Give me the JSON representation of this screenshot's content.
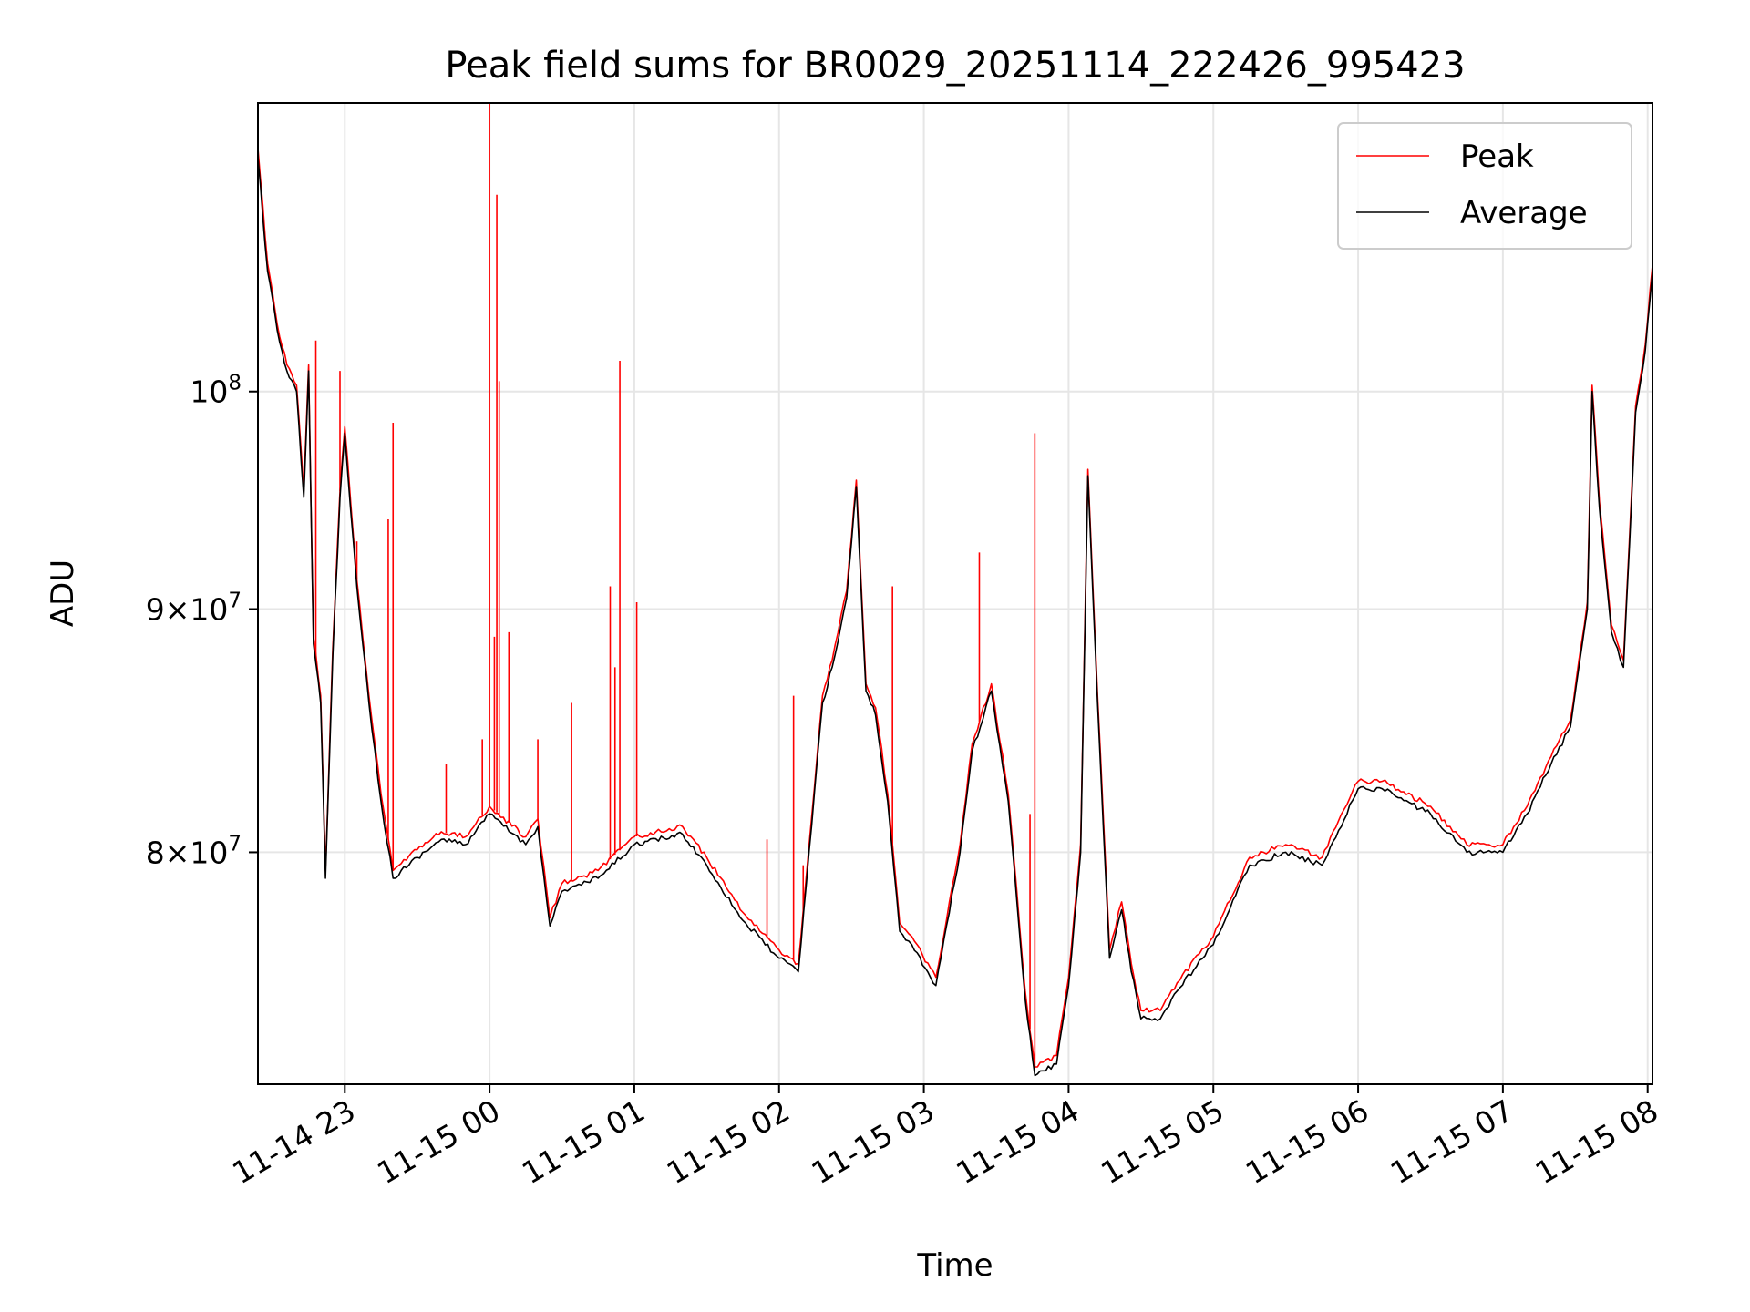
{
  "chart_data": {
    "type": "line",
    "title": "Peak field sums for BR0029_20251114_222426_995423",
    "xlabel": "Time",
    "ylabel": "ADU",
    "yscale": "log",
    "ylim": [
      71500000,
      115000000
    ],
    "xlim": [
      "2025-11-14 22:24",
      "2025-11-15 08:02"
    ],
    "grid": true,
    "legend": "top-right",
    "x_ticks": [
      {
        "value": "2025-11-14 23:00",
        "label": "11-14 23"
      },
      {
        "value": "2025-11-15 00:00",
        "label": "11-15 00"
      },
      {
        "value": "2025-11-15 01:00",
        "label": "11-15 01"
      },
      {
        "value": "2025-11-15 02:00",
        "label": "11-15 02"
      },
      {
        "value": "2025-11-15 03:00",
        "label": "11-15 03"
      },
      {
        "value": "2025-11-15 04:00",
        "label": "11-15 04"
      },
      {
        "value": "2025-11-15 05:00",
        "label": "11-15 05"
      },
      {
        "value": "2025-11-15 06:00",
        "label": "11-15 06"
      },
      {
        "value": "2025-11-15 07:00",
        "label": "11-15 07"
      },
      {
        "value": "2025-11-15 08:00",
        "label": "11-15 08"
      }
    ],
    "y_ticks": [
      {
        "value": 80000000,
        "mantissa": "8",
        "times": "×",
        "base": "10",
        "exp": "7"
      },
      {
        "value": 90000000,
        "mantissa": "9",
        "times": "×",
        "base": "10",
        "exp": "7"
      },
      {
        "value": 100000000,
        "mantissa": "",
        "times": "",
        "base": "10",
        "exp": "8"
      }
    ],
    "series": [
      {
        "name": "Average",
        "color": "#000000",
        "x": [
          "2025-11-14 22:24",
          "2025-11-14 22:28",
          "2025-11-14 22:32",
          "2025-11-14 22:36",
          "2025-11-14 22:40",
          "2025-11-14 22:43",
          "2025-11-14 22:45",
          "2025-11-14 22:47",
          "2025-11-14 22:50",
          "2025-11-14 22:52",
          "2025-11-14 22:55",
          "2025-11-14 22:58",
          "2025-11-14 23:00",
          "2025-11-14 23:05",
          "2025-11-14 23:10",
          "2025-11-14 23:15",
          "2025-11-14 23:20",
          "2025-11-14 23:30",
          "2025-11-14 23:40",
          "2025-11-14 23:50",
          "2025-11-15 00:00",
          "2025-11-15 00:15",
          "2025-11-15 00:20",
          "2025-11-15 00:25",
          "2025-11-15 00:30",
          "2025-11-15 00:45",
          "2025-11-15 01:00",
          "2025-11-15 01:20",
          "2025-11-15 01:30",
          "2025-11-15 01:45",
          "2025-11-15 02:00",
          "2025-11-15 02:08",
          "2025-11-15 02:18",
          "2025-11-15 02:22",
          "2025-11-15 02:28",
          "2025-11-15 02:32",
          "2025-11-15 02:36",
          "2025-11-15 02:40",
          "2025-11-15 02:45",
          "2025-11-15 02:50",
          "2025-11-15 02:55",
          "2025-11-15 03:05",
          "2025-11-15 03:15",
          "2025-11-15 03:20",
          "2025-11-15 03:28",
          "2025-11-15 03:35",
          "2025-11-15 03:42",
          "2025-11-15 03:46",
          "2025-11-15 03:55",
          "2025-11-15 04:00",
          "2025-11-15 04:05",
          "2025-11-15 04:08",
          "2025-11-15 04:12",
          "2025-11-15 04:17",
          "2025-11-15 04:22",
          "2025-11-15 04:26",
          "2025-11-15 04:30",
          "2025-11-15 04:38",
          "2025-11-15 04:45",
          "2025-11-15 05:00",
          "2025-11-15 05:15",
          "2025-11-15 05:30",
          "2025-11-15 05:45",
          "2025-11-15 06:00",
          "2025-11-15 06:10",
          "2025-11-15 06:30",
          "2025-11-15 06:45",
          "2025-11-15 07:00",
          "2025-11-15 07:10",
          "2025-11-15 07:20",
          "2025-11-15 07:28",
          "2025-11-15 07:35",
          "2025-11-15 07:37",
          "2025-11-15 07:40",
          "2025-11-15 07:45",
          "2025-11-15 07:50",
          "2025-11-15 07:55",
          "2025-11-15 07:59",
          "2025-11-15 08:02"
        ],
        "y": [
          112000000,
          106000000,
          103000000,
          101000000,
          100000000,
          95000000,
          101000000,
          88500000,
          86000000,
          79000000,
          88000000,
          95000000,
          98000000,
          91000000,
          86000000,
          82000000,
          79000000,
          79800000,
          80500000,
          80300000,
          81500000,
          80300000,
          81000000,
          77200000,
          78500000,
          79000000,
          80300000,
          80700000,
          79500000,
          77400000,
          76000000,
          75500000,
          86000000,
          87500000,
          90500000,
          95500000,
          86500000,
          85500000,
          82000000,
          77000000,
          76500000,
          75000000,
          80000000,
          84000000,
          86500000,
          82000000,
          74500000,
          71800000,
          72200000,
          75000000,
          80000000,
          96000000,
          86000000,
          76000000,
          77800000,
          75500000,
          73800000,
          73800000,
          74800000,
          76500000,
          79500000,
          80000000,
          79500000,
          82500000,
          82500000,
          81500000,
          80000000,
          80000000,
          81500000,
          83500000,
          85000000,
          90000000,
          100000000,
          94500000,
          89000000,
          87500000,
          99000000,
          102000000,
          106000000
        ]
      },
      {
        "name": "Peak",
        "color": "#ff0000",
        "x": [
          "2025-11-14 22:24",
          "2025-11-14 22:28",
          "2025-11-14 22:32",
          "2025-11-14 22:36",
          "2025-11-14 22:40",
          "2025-11-14 22:43",
          "2025-11-14 22:45",
          "2025-11-14 22:47",
          "2025-11-14 22:50",
          "2025-11-14 22:52",
          "2025-11-14 22:55",
          "2025-11-14 22:58",
          "2025-11-14 23:00",
          "2025-11-14 23:05",
          "2025-11-14 23:10",
          "2025-11-14 23:15",
          "2025-11-14 23:20",
          "2025-11-14 23:30",
          "2025-11-14 23:40",
          "2025-11-14 23:50",
          "2025-11-15 00:00",
          "2025-11-15 00:15",
          "2025-11-15 00:20",
          "2025-11-15 00:25",
          "2025-11-15 00:30",
          "2025-11-15 00:45",
          "2025-11-15 01:00",
          "2025-11-15 01:20",
          "2025-11-15 01:30",
          "2025-11-15 01:45",
          "2025-11-15 02:00",
          "2025-11-15 02:08",
          "2025-11-15 02:18",
          "2025-11-15 02:22",
          "2025-11-15 02:28",
          "2025-11-15 02:32",
          "2025-11-15 02:36",
          "2025-11-15 02:40",
          "2025-11-15 02:45",
          "2025-11-15 02:50",
          "2025-11-15 02:55",
          "2025-11-15 03:05",
          "2025-11-15 03:15",
          "2025-11-15 03:20",
          "2025-11-15 03:28",
          "2025-11-15 03:35",
          "2025-11-15 03:42",
          "2025-11-15 03:46",
          "2025-11-15 03:55",
          "2025-11-15 04:00",
          "2025-11-15 04:05",
          "2025-11-15 04:08",
          "2025-11-15 04:12",
          "2025-11-15 04:17",
          "2025-11-15 04:22",
          "2025-11-15 04:26",
          "2025-11-15 04:30",
          "2025-11-15 04:38",
          "2025-11-15 04:45",
          "2025-11-15 05:00",
          "2025-11-15 05:15",
          "2025-11-15 05:30",
          "2025-11-15 05:45",
          "2025-11-15 06:00",
          "2025-11-15 06:10",
          "2025-11-15 06:30",
          "2025-11-15 06:45",
          "2025-11-15 07:00",
          "2025-11-15 07:10",
          "2025-11-15 07:20",
          "2025-11-15 07:28",
          "2025-11-15 07:35",
          "2025-11-15 07:37",
          "2025-11-15 07:40",
          "2025-11-15 07:45",
          "2025-11-15 07:50",
          "2025-11-15 07:55",
          "2025-11-15 07:59",
          "2025-11-15 08:02"
        ],
        "y": [
          112500000,
          106400000,
          103300000,
          101300000,
          100300000,
          95300000,
          101300000,
          88800000,
          86300000,
          79300000,
          88300000,
          95300000,
          98300000,
          91300000,
          86300000,
          82300000,
          79300000,
          80100000,
          80800000,
          80600000,
          81800000,
          80600000,
          81300000,
          77500000,
          78800000,
          79300000,
          80600000,
          81000000,
          79800000,
          77700000,
          76300000,
          75800000,
          86300000,
          87800000,
          90800000,
          95800000,
          86800000,
          85800000,
          82300000,
          77300000,
          76800000,
          75300000,
          80300000,
          84300000,
          86800000,
          82300000,
          74800000,
          72100000,
          72500000,
          75300000,
          80300000,
          96300000,
          86300000,
          76300000,
          78100000,
          75800000,
          74100000,
          74100000,
          75100000,
          76800000,
          79800000,
          80300000,
          79800000,
          82800000,
          82800000,
          81800000,
          80300000,
          80300000,
          81800000,
          83800000,
          85300000,
          90300000,
          100300000,
          94800000,
          89300000,
          87800000,
          99300000,
          102300000,
          106300000
        ],
        "spikes": [
          {
            "x": "2025-11-14 22:48",
            "y": 102500000
          },
          {
            "x": "2025-11-14 22:58",
            "y": 101000000
          },
          {
            "x": "2025-11-14 23:05",
            "y": 93000000
          },
          {
            "x": "2025-11-14 23:18",
            "y": 94000000
          },
          {
            "x": "2025-11-14 23:20",
            "y": 98500000
          },
          {
            "x": "2025-11-14 23:42",
            "y": 83500000
          },
          {
            "x": "2025-11-14 23:57",
            "y": 84500000
          },
          {
            "x": "2025-11-15 00:00",
            "y": 115000000
          },
          {
            "x": "2025-11-15 00:02",
            "y": 88800000
          },
          {
            "x": "2025-11-15 00:03",
            "y": 110000000
          },
          {
            "x": "2025-11-15 00:04",
            "y": 100500000
          },
          {
            "x": "2025-11-15 00:08",
            "y": 89000000
          },
          {
            "x": "2025-11-15 00:20",
            "y": 84500000
          },
          {
            "x": "2025-11-15 00:34",
            "y": 86000000
          },
          {
            "x": "2025-11-15 00:50",
            "y": 91000000
          },
          {
            "x": "2025-11-15 00:52",
            "y": 87500000
          },
          {
            "x": "2025-11-15 00:54",
            "y": 101500000
          },
          {
            "x": "2025-11-15 01:01",
            "y": 90300000
          },
          {
            "x": "2025-11-15 01:55",
            "y": 80500000
          },
          {
            "x": "2025-11-15 02:06",
            "y": 86300000
          },
          {
            "x": "2025-11-15 02:10",
            "y": 79500000
          },
          {
            "x": "2025-11-15 02:47",
            "y": 91000000
          },
          {
            "x": "2025-11-15 03:23",
            "y": 92500000
          },
          {
            "x": "2025-11-15 03:44",
            "y": 81500000
          },
          {
            "x": "2025-11-15 03:46",
            "y": 98000000
          }
        ]
      }
    ]
  }
}
